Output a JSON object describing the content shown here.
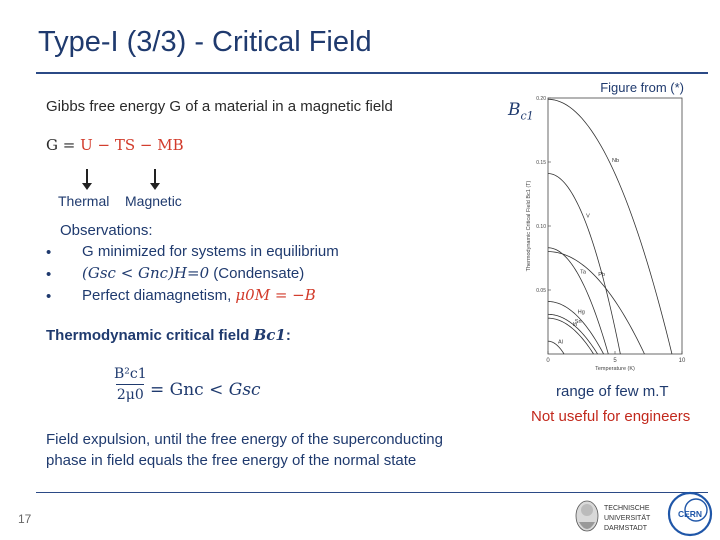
{
  "slide": {
    "title": "Type-I (3/3) - Critical Field",
    "figure_source": "Figure from (*)",
    "page_number": "17"
  },
  "body": {
    "gibbs_intro": "Gibbs free energy G of a material  in a magnetic field",
    "gibbs_eq": {
      "lhs": "G = ",
      "u": "U",
      "ts": " − TS",
      "mb": " − MB"
    },
    "thermal_label": "Thermal",
    "magnetic_label": "Magnetic",
    "observations_title": "Observations:",
    "bullet_char": "•",
    "obs1": "G minimized for systems in equilibrium",
    "obs2_math": "(Gsc < Gnc)H=0",
    "obs2_text": " (Condensate)",
    "obs3_text": "Perfect diamagnetism,  ",
    "obs3_math": "μ0M = −B",
    "critical_field_label": "Thermodynamic critical field ",
    "critical_field_sym": "Bc1",
    "critical_field_colon": ":",
    "eq_num": "B²c1",
    "eq_den": "2μ0",
    "eq_rhs": " = Gnc < ",
    "eq_rhs_i": "Gsc",
    "field_line1": "Field expulsion,  until the free energy of the superconducting",
    "field_line2": "phase in field equals the free energy of the normal state"
  },
  "side": {
    "bc1_label": "B",
    "bc1_sub": "c1",
    "range_note": "range of few m.T",
    "not_useful": "Not useful for engineers"
  },
  "logos": {
    "tud_line1": "TECHNISCHE",
    "tud_line2": "UNIVERSITÄT",
    "tud_line3": "DARMSTADT",
    "cern": "CERN"
  },
  "chart_data": {
    "type": "line",
    "xlabel": "Temperature (K)",
    "ylabel": "Thermodynamic Critical Field Bc1 (T)",
    "xlim": [
      0,
      10
    ],
    "ylim": [
      0,
      0.2
    ],
    "x_ticks": [
      "0",
      "5",
      "10"
    ],
    "y_ticks": [
      "0.05",
      "0.10",
      "0.15",
      "0.20"
    ],
    "series": [
      {
        "name": "Nb",
        "Tc": 9.25,
        "B0": 0.199
      },
      {
        "name": "V",
        "Tc": 5.4,
        "B0": 0.141
      },
      {
        "name": "Pb",
        "Tc": 7.2,
        "B0": 0.08
      },
      {
        "name": "Ta",
        "Tc": 4.5,
        "B0": 0.083
      },
      {
        "name": "Hg",
        "Tc": 4.15,
        "B0": 0.041
      },
      {
        "name": "Sn",
        "Tc": 3.7,
        "B0": 0.031
      },
      {
        "name": "In",
        "Tc": 3.4,
        "B0": 0.028
      },
      {
        "name": "Al",
        "Tc": 1.2,
        "B0": 0.01
      }
    ]
  }
}
